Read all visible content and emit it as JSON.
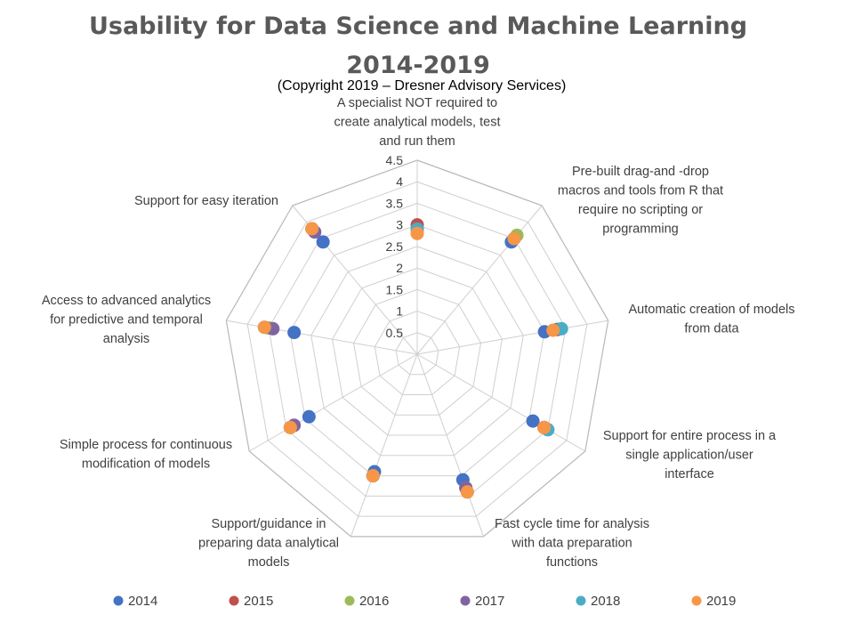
{
  "chart_data": {
    "type": "radar",
    "title_line1": "Usability for Data Science and Machine Learning",
    "title_line2": "2014-2019",
    "subtitle": "(Copyright 2019 – Dresner Advisory Services)",
    "axis_max": 4.5,
    "axis_min": 0,
    "tick_labels": [
      "0.5",
      "1",
      "1.5",
      "2",
      "2.5",
      "3",
      "3.5",
      "4",
      "4.5"
    ],
    "tick_values": [
      0.5,
      1,
      1.5,
      2,
      2.5,
      3,
      3.5,
      4,
      4.5
    ],
    "categories": [
      "A specialist NOT required to create analytical models, test and run them",
      "Pre-built drag-and -drop macros and tools from R that require no scripting or programming",
      "Automatic creation of models from data",
      "Support for entire process in a single application/user interface",
      "Fast cycle time for analysis with data preparation functions",
      "Support/guidance in preparing data analytical models",
      "Simple process for continuous modification of models",
      "Access to advanced analytics for predictive and temporal analysis",
      "Support for easy iteration"
    ],
    "category_lines": [
      [
        "A specialist NOT required to",
        "create analytical models, test",
        "and run them"
      ],
      [
        "Pre-built drag-and -drop",
        "macros and tools from R that",
        "require no scripting or",
        "programming"
      ],
      [
        "Automatic creation of models",
        "from data"
      ],
      [
        "Support for entire process in a",
        "single application/user",
        "interface"
      ],
      [
        "Fast cycle time for analysis",
        "with data preparation",
        "functions"
      ],
      [
        "Support/guidance in",
        "preparing data analytical",
        "models"
      ],
      [
        "Simple process for continuous",
        "modification of models"
      ],
      [
        "Access to advanced analytics",
        "for predictive and temporal",
        "analysis"
      ],
      [
        "Support for easy iteration"
      ]
    ],
    "series": [
      {
        "name": "2014",
        "color": "#4472c4",
        "values": [
          2.9,
          3.4,
          3.0,
          3.1,
          3.1,
          2.9,
          2.9,
          2.9,
          3.4
        ]
      },
      {
        "name": "2015",
        "color": "#c0504d",
        "values": [
          3.0,
          3.5,
          3.3,
          3.4,
          3.3,
          3.0,
          3.3,
          3.5,
          3.8
        ]
      },
      {
        "name": "2016",
        "color": "#9bbb59",
        "values": [
          2.9,
          3.6,
          3.3,
          3.5,
          3.3,
          3.0,
          3.4,
          3.5,
          3.8
        ]
      },
      {
        "name": "2017",
        "color": "#8064a2",
        "values": [
          2.9,
          3.5,
          3.3,
          3.4,
          3.3,
          3.0,
          3.3,
          3.4,
          3.7
        ]
      },
      {
        "name": "2018",
        "color": "#4bacc6",
        "values": [
          2.9,
          3.5,
          3.4,
          3.5,
          3.4,
          3.0,
          3.4,
          3.6,
          3.8
        ]
      },
      {
        "name": "2019",
        "color": "#f79646",
        "values": [
          2.8,
          3.5,
          3.2,
          3.4,
          3.4,
          3.0,
          3.4,
          3.6,
          3.8
        ]
      }
    ],
    "legend_position": "bottom"
  }
}
